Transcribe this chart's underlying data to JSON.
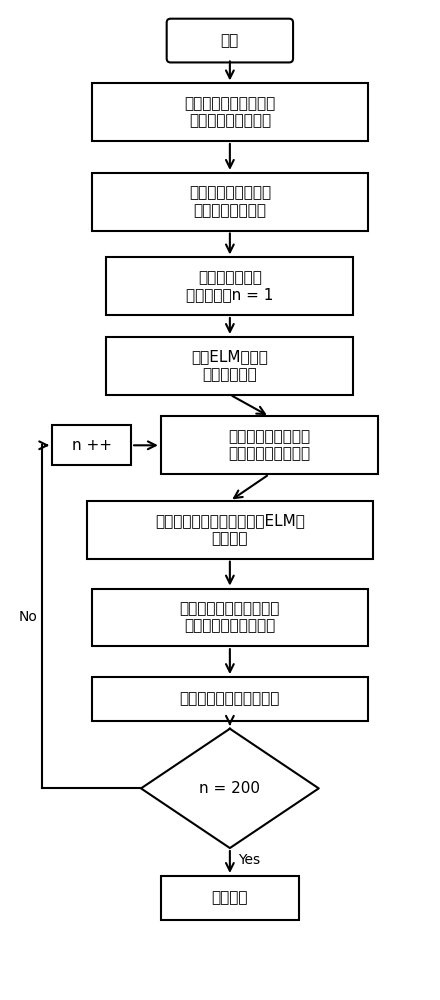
{
  "bg_color": "#ffffff",
  "node_fill": "#ffffff",
  "node_edge": "#000000",
  "arrow_color": "#000000",
  "text_color": "#000000",
  "start_label": "开始",
  "step1_label": "获得最新状态动作对与\n其奖励值的数据向量",
  "step2_label": "将最新数据向量动态\n扩容至数据矩阵中",
  "step3_label": "定义遗传算法优\n化迭代次数n = 1",
  "step4_label": "生成ELM隐藏层\n初始参数种群",
  "npp_label": "n ++",
  "step5_label": "对未被淘汰的种群进\n行交叉、变异等操作",
  "step6_label": "对不同的初始参数个体放入ELM中\n进行训练",
  "step7_label": "通过预设的适应度函数对\n种群中的模型进行评估",
  "step8_label": "进行遗传算法的淘汰操作",
  "diamond_label": "n = 200",
  "end_label": "输出模型",
  "yes_label": "Yes",
  "no_label": "No",
  "fontsize": 11,
  "fontsize_small": 10
}
